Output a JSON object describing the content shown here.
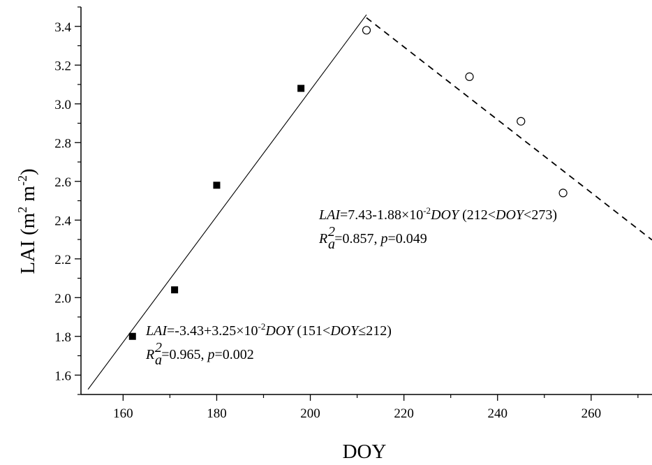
{
  "chart_data": {
    "type": "scatter",
    "xlabel": "DOY",
    "ylabel_main": "LAI (m",
    "ylabel_sup1": "2",
    "ylabel_mid": " m",
    "ylabel_sup2": "-2",
    "ylabel_end": ")",
    "xlim": [
      151,
      273
    ],
    "ylim": [
      1.5,
      3.5
    ],
    "xticks": [
      160,
      180,
      200,
      220,
      240,
      260
    ],
    "yticks": [
      1.6,
      1.8,
      2.0,
      2.2,
      2.4,
      2.6,
      2.8,
      3.0,
      3.2,
      3.4
    ],
    "series": [
      {
        "marker": "filled-square",
        "x": [
          162,
          171,
          180,
          198
        ],
        "y": [
          1.8,
          2.04,
          2.58,
          3.08
        ]
      },
      {
        "marker": "open-circle",
        "x": [
          212,
          234,
          245,
          254
        ],
        "y": [
          3.38,
          3.14,
          2.91,
          2.54
        ]
      }
    ],
    "fits": [
      {
        "style": "solid",
        "x_range": [
          152.5,
          212
        ],
        "intercept": -3.43,
        "slope": 0.0325
      },
      {
        "style": "dashed",
        "x_range": [
          212,
          273
        ],
        "intercept": 7.43,
        "slope": -0.0188
      }
    ],
    "annotations": {
      "eq1": {
        "lai": "LAI",
        "formula": "=-3.43+3.25×10",
        "exp": "-2",
        "doy": "DOY",
        "range_open": " (151<",
        "range_doy": "DOY",
        "range_close": "≤212)",
        "r": "R",
        "r_sup": "2",
        "r_sub": "a",
        "stats": "=0.965, ",
        "p": "p",
        "p_val": "=0.002"
      },
      "eq2": {
        "lai": "LAI",
        "formula": "=7.43-1.88×10",
        "exp": "-2",
        "doy": "DOY",
        "range_open": " (212<",
        "range_doy": "DOY",
        "range_close": "<273)",
        "r": "R",
        "r_sup": "2",
        "r_sub": "a",
        "stats": "=0.857, ",
        "p": "p",
        "p_val": "=0.049"
      }
    },
    "colors": {
      "ink": "#000000",
      "background": "#ffffff"
    }
  }
}
